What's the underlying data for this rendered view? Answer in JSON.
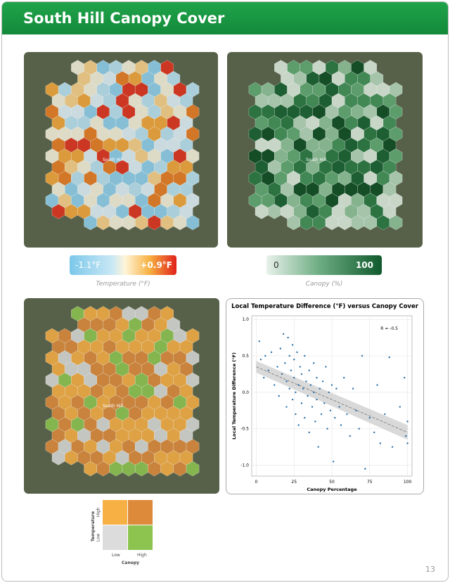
{
  "header": {
    "title": "South Hill Canopy Cover"
  },
  "maps": [
    {
      "label": "South Hill"
    },
    {
      "label": "South Hill"
    },
    {
      "label": "South Hill"
    }
  ],
  "temperature_legend": {
    "low": "-1.1°F",
    "high": "+0.9°F",
    "caption": "Temperature (°F)"
  },
  "canopy_legend": {
    "low": "0",
    "high": "100",
    "caption": "Canopy (%)"
  },
  "bivariate_legend": {
    "y_title": "Temperature",
    "y_high": "High",
    "y_low": "Low",
    "x_title": "Canopy",
    "x_low": "Low",
    "x_high": "High"
  },
  "page_number": "13",
  "chart_data": {
    "type": "scatter",
    "title": "Local Temperature Difference (°F) versus Canopy Cover",
    "x_label": "Canopy Percentage",
    "y_label": "Local Temperature Difference (°F)",
    "annotation": "R = -0.5",
    "xlim": [
      -3,
      103
    ],
    "ylim": [
      -1.15,
      1.05
    ],
    "xticks": [
      0,
      25,
      50,
      75,
      100
    ],
    "yticks": [
      {
        "value": 1,
        "label": "1.0"
      },
      {
        "value": 0.5,
        "label": "0.5"
      },
      {
        "value": 0,
        "label": "0.0"
      },
      {
        "value": -0.5,
        "label": "-0.5"
      },
      {
        "value": -1,
        "label": "-1.0"
      }
    ],
    "color": "#2a6fa8",
    "x": [
      2,
      3,
      5,
      6,
      8,
      10,
      12,
      14,
      15,
      16,
      17,
      18,
      19,
      20,
      20,
      21,
      22,
      22,
      23,
      24,
      24,
      25,
      25,
      26,
      26,
      27,
      28,
      28,
      29,
      30,
      30,
      31,
      32,
      32,
      33,
      34,
      35,
      35,
      36,
      37,
      38,
      38,
      39,
      40,
      40,
      41,
      42,
      43,
      44,
      45,
      46,
      47,
      48,
      49,
      50,
      51,
      52,
      53,
      55,
      56,
      58,
      60,
      62,
      64,
      66,
      68,
      70,
      72,
      75,
      78,
      80,
      82,
      85,
      88,
      90,
      95,
      98,
      99,
      100,
      100
    ],
    "y": [
      0.7,
      0.45,
      0.2,
      0.5,
      0.3,
      0.55,
      0.1,
      0.35,
      -0.05,
      0.6,
      0.25,
      0.8,
      0.4,
      0.15,
      -0.2,
      0.75,
      0.5,
      0.05,
      0.3,
      0.65,
      -0.1,
      0.2,
      0.45,
      -0.3,
      0.0,
      0.55,
      0.1,
      -0.45,
      0.35,
      0.25,
      -0.15,
      0.05,
      0.5,
      -0.35,
      0.15,
      -0.05,
      0.3,
      -0.55,
      0.1,
      -0.2,
      0.4,
      0.0,
      -0.4,
      0.2,
      -0.1,
      -0.75,
      0.05,
      -0.3,
      0.15,
      -0.15,
      0.35,
      -0.5,
      0.0,
      -0.25,
      0.1,
      -0.95,
      -0.35,
      0.05,
      -0.2,
      -0.45,
      0.2,
      -0.3,
      -0.6,
      0.05,
      -0.25,
      -0.5,
      0.5,
      -1.05,
      -0.35,
      -0.55,
      0.1,
      -0.7,
      -0.3,
      0.48,
      -0.75,
      -0.2,
      0.2,
      -0.6,
      -0.4,
      -0.7
    ],
    "trend": {
      "x": [
        0,
        100
      ],
      "y": [
        0.35,
        -0.55
      ],
      "lower": [
        0.27,
        -0.65
      ],
      "upper": [
        0.43,
        -0.45
      ]
    }
  }
}
